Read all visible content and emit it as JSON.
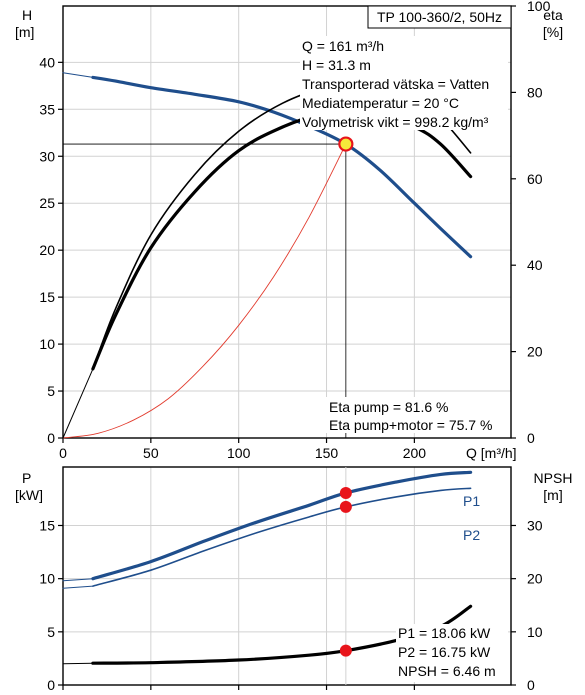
{
  "chart_data": [
    {
      "type": "line",
      "title_box": "TP 100-360/2, 50Hz",
      "left_axis": {
        "label": "H",
        "unit": "[m]",
        "ylim": [
          0,
          46
        ],
        "ticks": [
          0,
          5,
          10,
          15,
          20,
          25,
          30,
          35,
          40
        ]
      },
      "right_axis": {
        "label": "eta",
        "unit": "[%]",
        "ylim": [
          0,
          100
        ],
        "ticks": [
          0,
          20,
          40,
          60,
          80,
          100
        ]
      },
      "x_axis": {
        "label": "Q [m³/h]",
        "xlim": [
          0,
          255
        ],
        "ticks": [
          0,
          50,
          100,
          150,
          200
        ]
      },
      "grid": true,
      "operating_point": {
        "Q": 161,
        "H": 31.3
      },
      "info_lines": [
        "Q = 161 m³/h",
        "H = 31.3 m",
        "Transporterad vätska = Vatten",
        "Mediatemperatur = 20 °C",
        "Volymetrisk vikt = 998.2 kg/m³"
      ],
      "eta_lines": [
        "Eta pump = 81.6 %",
        "Eta pump+motor = 75.7 %"
      ],
      "eta_points": [
        81.6,
        75.7
      ],
      "colors": {
        "head": "#1f4e8c",
        "system": "#e23b2e",
        "eta": "#000000",
        "marker": "#e8141b",
        "op_fill": "#f5e93a"
      },
      "series": [
        {
          "axis": "left",
          "style": "head-thin",
          "x": [
            0,
            17
          ],
          "y": [
            38.9,
            38.4
          ]
        },
        {
          "axis": "left",
          "style": "head",
          "x": [
            17,
            30,
            50,
            75,
            100,
            120,
            140,
            161,
            180,
            200,
            215,
            232
          ],
          "y": [
            38.4,
            38.0,
            37.3,
            36.6,
            35.8,
            34.7,
            33.2,
            31.3,
            28.6,
            25.0,
            22.3,
            19.3
          ]
        },
        {
          "axis": "left",
          "style": "system",
          "x": [
            0,
            20,
            40,
            60,
            80,
            100,
            120,
            140,
            161
          ],
          "y": [
            0,
            0.5,
            1.9,
            4.2,
            7.7,
            12.0,
            17.2,
            23.5,
            31.3
          ]
        },
        {
          "axis": "right",
          "style": "eta-thin",
          "x": [
            0,
            17
          ],
          "y": [
            0,
            16
          ]
        },
        {
          "axis": "right",
          "style": "eta-pump",
          "x": [
            17,
            30,
            50,
            75,
            100,
            125,
            150,
            161,
            175,
            200,
            215,
            232
          ],
          "y": [
            16,
            30,
            47,
            61,
            71,
            77.5,
            81.3,
            81.6,
            81.2,
            78,
            74,
            66
          ]
        },
        {
          "axis": "right",
          "style": "eta-total",
          "x": [
            17,
            30,
            50,
            75,
            100,
            125,
            150,
            161,
            175,
            200,
            215,
            232
          ],
          "y": [
            16,
            28.5,
            44,
            57,
            66.5,
            72,
            75.4,
            75.7,
            75.2,
            72,
            68,
            60.5
          ]
        }
      ]
    },
    {
      "type": "line",
      "left_axis": {
        "label": "P",
        "unit": "[kW]",
        "ylim": [
          0,
          20.5
        ],
        "ticks": [
          0,
          5,
          10,
          15
        ]
      },
      "right_axis": {
        "label": "NPSH",
        "unit": "[m]",
        "ylim": [
          0,
          41
        ],
        "ticks": [
          0,
          10,
          20,
          30
        ]
      },
      "x_axis": {
        "xlim": [
          0,
          255
        ],
        "ticks": [
          0,
          50,
          100,
          150,
          200
        ]
      },
      "grid": true,
      "legend": [
        "P1",
        "P2"
      ],
      "info_lines": [
        "P1 = 18.06 kW",
        "P2 = 16.75 kW",
        "NPSH = 6.46 m"
      ],
      "points": {
        "Q": 161,
        "P1": 18.06,
        "P2": 16.75,
        "NPSH": 6.46
      },
      "colors": {
        "power": "#1f4e8c",
        "npsh": "#000000",
        "marker": "#e8141b"
      },
      "series": [
        {
          "axis": "left",
          "style": "p1-thin",
          "x": [
            0,
            17
          ],
          "y": [
            9.8,
            10.0
          ]
        },
        {
          "axis": "left",
          "style": "p1",
          "x": [
            17,
            50,
            80,
            110,
            140,
            161,
            190,
            215,
            232
          ],
          "y": [
            10.0,
            11.6,
            13.5,
            15.3,
            16.9,
            18.06,
            19.1,
            19.8,
            20.0
          ]
        },
        {
          "axis": "left",
          "style": "p2-thin",
          "x": [
            0,
            17
          ],
          "y": [
            9.1,
            9.3
          ]
        },
        {
          "axis": "left",
          "style": "p2",
          "x": [
            17,
            50,
            80,
            110,
            140,
            161,
            190,
            215,
            232
          ],
          "y": [
            9.3,
            10.8,
            12.6,
            14.3,
            15.8,
            16.75,
            17.7,
            18.3,
            18.5
          ]
        },
        {
          "axis": "right",
          "style": "npsh-thin",
          "x": [
            0,
            17
          ],
          "y": [
            4.0,
            4.1
          ]
        },
        {
          "axis": "right",
          "style": "npsh",
          "x": [
            17,
            50,
            100,
            140,
            161,
            190,
            215,
            232
          ],
          "y": [
            4.1,
            4.2,
            4.7,
            5.6,
            6.46,
            8.4,
            11.0,
            14.8
          ]
        }
      ]
    }
  ]
}
